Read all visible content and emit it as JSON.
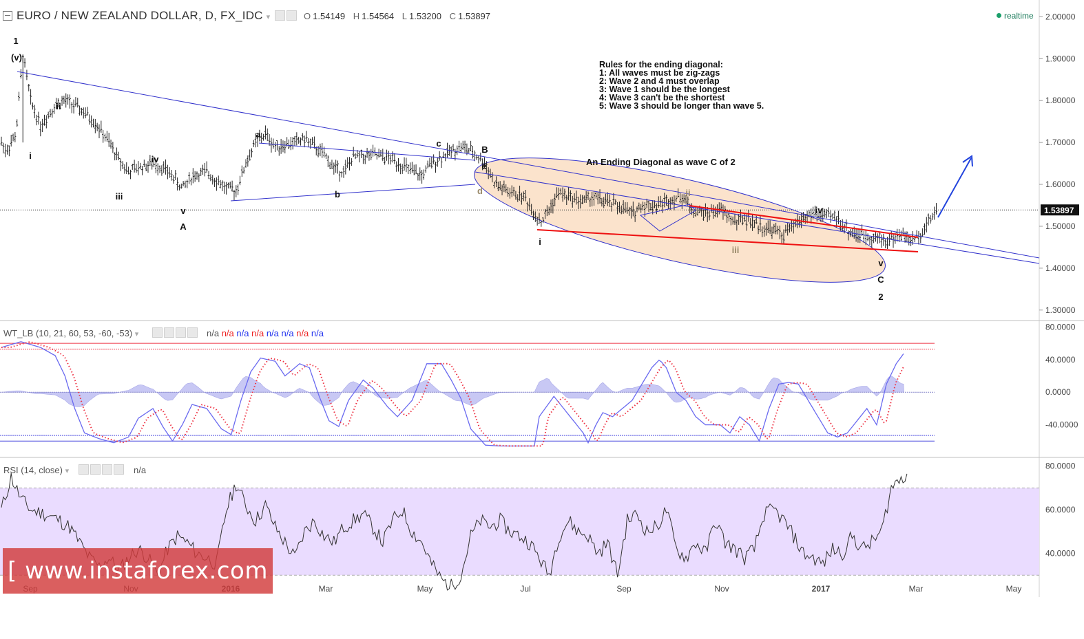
{
  "header": {
    "symbol": "EURO / NEW ZEALAND DOLLAR, D, FX_IDC",
    "o_label": "O",
    "o_value": "1.54149",
    "h_label": "H",
    "h_value": "1.54564",
    "l_label": "L",
    "l_value": "1.53200",
    "c_label": "C",
    "c_value": "1.53897",
    "realtime": "realtime"
  },
  "colors": {
    "candle": "#222222",
    "trendline": "#3333cc",
    "red_line": "#ee1111",
    "ellipse_fill": "#fbe3cc",
    "rsi_band": "#eadcff",
    "wt_blue": "#6a6af0",
    "wt_red": "#ee3344",
    "watermark": "#d23c3c"
  },
  "wt_panel": {
    "title": "WT_LB (10, 21, 60, 53, -60, -53)",
    "values": [
      "n/a",
      "n/a",
      "n/a",
      "n/a",
      "n/a",
      "n/a",
      "n/a",
      "n/a",
      "n/a"
    ]
  },
  "rsi_panel": {
    "title": "RSI (14, close)",
    "value": "n/a"
  },
  "watermark": "[ www.instaforex.com ]",
  "chart_data": {
    "type": "candlestick",
    "title": "EURO / NEW ZEALAND DOLLAR, D, FX_IDC",
    "price_axis": {
      "ticks": [
        2.0,
        1.9,
        1.8,
        1.7,
        1.6,
        1.5,
        1.4,
        1.3
      ],
      "tick_labels": [
        "2.00000",
        "1.90000",
        "1.80000",
        "1.70000",
        "1.60000",
        "1.50000",
        "1.40000",
        "1.30000"
      ],
      "ylim": [
        1.275,
        2.04
      ]
    },
    "last_price": "1.53897",
    "x_labels": [
      "Sep",
      "Nov",
      "2016",
      "Mar",
      "May",
      "Jul",
      "Sep",
      "Nov",
      "2017",
      "Mar",
      "May"
    ],
    "price_path": [
      [
        0,
        1.7
      ],
      [
        0.5,
        1.68
      ],
      [
        1.5,
        1.72
      ],
      [
        2.2,
        1.91
      ],
      [
        3,
        1.8
      ],
      [
        4,
        1.74
      ],
      [
        5.5,
        1.79
      ],
      [
        6.5,
        1.8
      ],
      [
        8,
        1.78
      ],
      [
        9.5,
        1.75
      ],
      [
        11,
        1.7
      ],
      [
        12,
        1.66
      ],
      [
        13,
        1.63
      ],
      [
        14,
        1.64
      ],
      [
        15.5,
        1.65
      ],
      [
        16.5,
        1.64
      ],
      [
        17.5,
        1.62
      ],
      [
        18.5,
        1.59
      ],
      [
        19.5,
        1.62
      ],
      [
        21,
        1.63
      ],
      [
        22,
        1.61
      ],
      [
        23,
        1.59
      ],
      [
        24,
        1.585
      ],
      [
        25,
        1.65
      ],
      [
        26,
        1.7
      ],
      [
        27,
        1.72
      ],
      [
        28,
        1.69
      ],
      [
        30,
        1.7
      ],
      [
        31,
        1.71
      ],
      [
        32,
        1.69
      ],
      [
        33,
        1.67
      ],
      [
        34,
        1.64
      ],
      [
        35,
        1.63
      ],
      [
        36,
        1.665
      ],
      [
        38,
        1.67
      ],
      [
        40,
        1.66
      ],
      [
        42,
        1.63
      ],
      [
        43,
        1.62
      ],
      [
        44,
        1.65
      ],
      [
        46,
        1.68
      ],
      [
        47,
        1.69
      ],
      [
        48,
        1.68
      ],
      [
        49.5,
        1.65
      ],
      [
        50.5,
        1.6
      ],
      [
        52,
        1.58
      ],
      [
        53.5,
        1.57
      ],
      [
        54.5,
        1.53
      ],
      [
        55.2,
        1.51
      ],
      [
        56,
        1.54
      ],
      [
        57,
        1.58
      ],
      [
        58,
        1.57
      ],
      [
        59.5,
        1.56
      ],
      [
        60.5,
        1.57
      ],
      [
        61.5,
        1.56
      ],
      [
        63,
        1.55
      ],
      [
        64.5,
        1.53
      ],
      [
        65.5,
        1.55
      ],
      [
        67,
        1.55
      ],
      [
        68.5,
        1.565
      ],
      [
        69.8,
        1.57
      ],
      [
        70.5,
        1.54
      ],
      [
        72,
        1.53
      ],
      [
        73.5,
        1.54
      ],
      [
        75,
        1.51
      ],
      [
        76,
        1.52
      ],
      [
        77.5,
        1.5
      ],
      [
        79,
        1.49
      ],
      [
        80,
        1.48
      ],
      [
        81,
        1.5
      ],
      [
        82,
        1.52
      ],
      [
        83,
        1.53
      ],
      [
        84,
        1.525
      ],
      [
        85.5,
        1.52
      ],
      [
        86.5,
        1.49
      ],
      [
        87.5,
        1.48
      ],
      [
        89,
        1.475
      ],
      [
        90.5,
        1.465
      ],
      [
        92,
        1.48
      ],
      [
        93.2,
        1.465
      ],
      [
        94.2,
        1.49
      ],
      [
        95,
        1.52
      ],
      [
        95.8,
        1.54
      ]
    ],
    "annotations": [
      "1",
      "(v)",
      "i",
      "ii",
      "iii",
      "iv",
      "v",
      "A",
      "a",
      "b",
      "c",
      "B",
      "d",
      "e",
      "i",
      "ii",
      "iii",
      "iv",
      "v",
      "C",
      "2"
    ],
    "ending_diagonal_label": "An Ending Diagonal as wave C of 2",
    "rules": [
      "Rules for the ending diagonal:",
      "1: All waves must be zig-zags",
      "2: Wave 2 and 4 must overlap",
      "3: Wave 1 should be the longest",
      "4: Wave 3 can't be the shortest",
      "5: Wave 3 should be longer than wave 5."
    ],
    "wt_axis": {
      "ticks": [
        80,
        40,
        0,
        -40
      ],
      "tick_labels": [
        "80.0000",
        "40.0000",
        "0.0000",
        "-40.0000"
      ],
      "levels": [
        60,
        53,
        -53,
        -60
      ],
      "ylim": [
        -80,
        88
      ]
    },
    "wt_wave1": [
      [
        0,
        55
      ],
      [
        2,
        62
      ],
      [
        4,
        55
      ],
      [
        5.5,
        45
      ],
      [
        6.5,
        20
      ],
      [
        7.5,
        -20
      ],
      [
        8.5,
        -50
      ],
      [
        10,
        -57
      ],
      [
        11.5,
        -62
      ],
      [
        13,
        -55
      ],
      [
        14,
        -32
      ],
      [
        15.5,
        -20
      ],
      [
        16.5,
        -42
      ],
      [
        17.5,
        -60
      ],
      [
        18.5,
        -40
      ],
      [
        19.5,
        -15
      ],
      [
        21,
        -20
      ],
      [
        22.5,
        -45
      ],
      [
        23.5,
        -52
      ],
      [
        24.5,
        -10
      ],
      [
        25.5,
        25
      ],
      [
        26.5,
        42
      ],
      [
        28,
        38
      ],
      [
        29,
        20
      ],
      [
        30.5,
        35
      ],
      [
        31.5,
        30
      ],
      [
        32.5,
        -5
      ],
      [
        33.5,
        -35
      ],
      [
        34.5,
        -42
      ],
      [
        35.5,
        -10
      ],
      [
        37,
        15
      ],
      [
        38,
        5
      ],
      [
        39.5,
        -18
      ],
      [
        40.5,
        -30
      ],
      [
        42,
        -10
      ],
      [
        43.5,
        35
      ],
      [
        45,
        35
      ],
      [
        46,
        15
      ],
      [
        47,
        -8
      ],
      [
        48,
        -45
      ],
      [
        49.5,
        -65
      ],
      [
        51,
        -66
      ],
      [
        53,
        -66
      ],
      [
        54.5,
        -66
      ],
      [
        55,
        -30
      ],
      [
        56.5,
        -5
      ],
      [
        57.5,
        -20
      ],
      [
        58.5,
        -35
      ],
      [
        59.5,
        -50
      ],
      [
        60,
        -62
      ],
      [
        60.8,
        -40
      ],
      [
        61.5,
        -25
      ],
      [
        62.5,
        -30
      ],
      [
        63.5,
        -20
      ],
      [
        64.5,
        -10
      ],
      [
        65.5,
        10
      ],
      [
        66.5,
        30
      ],
      [
        67.3,
        40
      ],
      [
        68,
        30
      ],
      [
        69,
        0
      ],
      [
        70,
        -10
      ],
      [
        71,
        -30
      ],
      [
        72,
        -40
      ],
      [
        73.5,
        -40
      ],
      [
        74.5,
        -50
      ],
      [
        75.5,
        -30
      ],
      [
        76.5,
        -40
      ],
      [
        77.5,
        -60
      ],
      [
        78.5,
        -20
      ],
      [
        79.5,
        10
      ],
      [
        80.5,
        12
      ],
      [
        81.5,
        10
      ],
      [
        82.5,
        -10
      ],
      [
        83.5,
        -30
      ],
      [
        84.5,
        -50
      ],
      [
        85.5,
        -55
      ],
      [
        86.5,
        -50
      ],
      [
        87.5,
        -35
      ],
      [
        88.5,
        -20
      ],
      [
        89.5,
        -40
      ],
      [
        90.5,
        10
      ],
      [
        91.5,
        35
      ],
      [
        92.3,
        48
      ]
    ],
    "rsi_axis": {
      "ticks": [
        80,
        60,
        40
      ],
      "tick_labels": [
        "80.0000",
        "60.0000",
        "40.0000"
      ],
      "levels": [
        70,
        30
      ],
      "ylim": [
        20,
        84
      ]
    },
    "rsi_series": [
      [
        0,
        60
      ],
      [
        1,
        75
      ],
      [
        2,
        65
      ],
      [
        3,
        60
      ],
      [
        4.5,
        58
      ],
      [
        6,
        55
      ],
      [
        7,
        52
      ],
      [
        8,
        45
      ],
      [
        9,
        38
      ],
      [
        10,
        34
      ],
      [
        11,
        38
      ],
      [
        12,
        32
      ],
      [
        13,
        38
      ],
      [
        14,
        42
      ],
      [
        15,
        38
      ],
      [
        16,
        30
      ],
      [
        17,
        42
      ],
      [
        18,
        48
      ],
      [
        19,
        45
      ],
      [
        20,
        40
      ],
      [
        21,
        38
      ],
      [
        22,
        35
      ],
      [
        23,
        60
      ],
      [
        24,
        72
      ],
      [
        25,
        62
      ],
      [
        26,
        55
      ],
      [
        27,
        62
      ],
      [
        28,
        52
      ],
      [
        29,
        45
      ],
      [
        30,
        38
      ],
      [
        31,
        50
      ],
      [
        32,
        55
      ],
      [
        33,
        48
      ],
      [
        34,
        45
      ],
      [
        35,
        52
      ],
      [
        36,
        55
      ],
      [
        37,
        58
      ],
      [
        38,
        52
      ],
      [
        39,
        45
      ],
      [
        40,
        55
      ],
      [
        41,
        60
      ],
      [
        42,
        50
      ],
      [
        43,
        45
      ],
      [
        44,
        35
      ],
      [
        45,
        28
      ],
      [
        46,
        25
      ],
      [
        47,
        30
      ],
      [
        48,
        48
      ],
      [
        49,
        55
      ],
      [
        50,
        52
      ],
      [
        51,
        55
      ],
      [
        52,
        50
      ],
      [
        53,
        48
      ],
      [
        54,
        45
      ],
      [
        55,
        38
      ],
      [
        56,
        30
      ],
      [
        57,
        48
      ],
      [
        58,
        55
      ],
      [
        59,
        50
      ],
      [
        60,
        48
      ],
      [
        61,
        40
      ],
      [
        62,
        45
      ],
      [
        63,
        30
      ],
      [
        64,
        55
      ],
      [
        65,
        58
      ],
      [
        66,
        50
      ],
      [
        67,
        52
      ],
      [
        68,
        60
      ],
      [
        69,
        42
      ],
      [
        70,
        38
      ],
      [
        71,
        45
      ],
      [
        72,
        40
      ],
      [
        73,
        55
      ],
      [
        74,
        45
      ],
      [
        75,
        42
      ],
      [
        76,
        38
      ],
      [
        77,
        42
      ],
      [
        78,
        58
      ],
      [
        79,
        60
      ],
      [
        80,
        55
      ],
      [
        81,
        48
      ],
      [
        82,
        40
      ],
      [
        83,
        38
      ],
      [
        84,
        35
      ],
      [
        85,
        42
      ],
      [
        86,
        40
      ],
      [
        87,
        48
      ],
      [
        88,
        42
      ],
      [
        89,
        45
      ],
      [
        90,
        50
      ],
      [
        91,
        70
      ],
      [
        92,
        75
      ],
      [
        92.8,
        77
      ]
    ]
  }
}
